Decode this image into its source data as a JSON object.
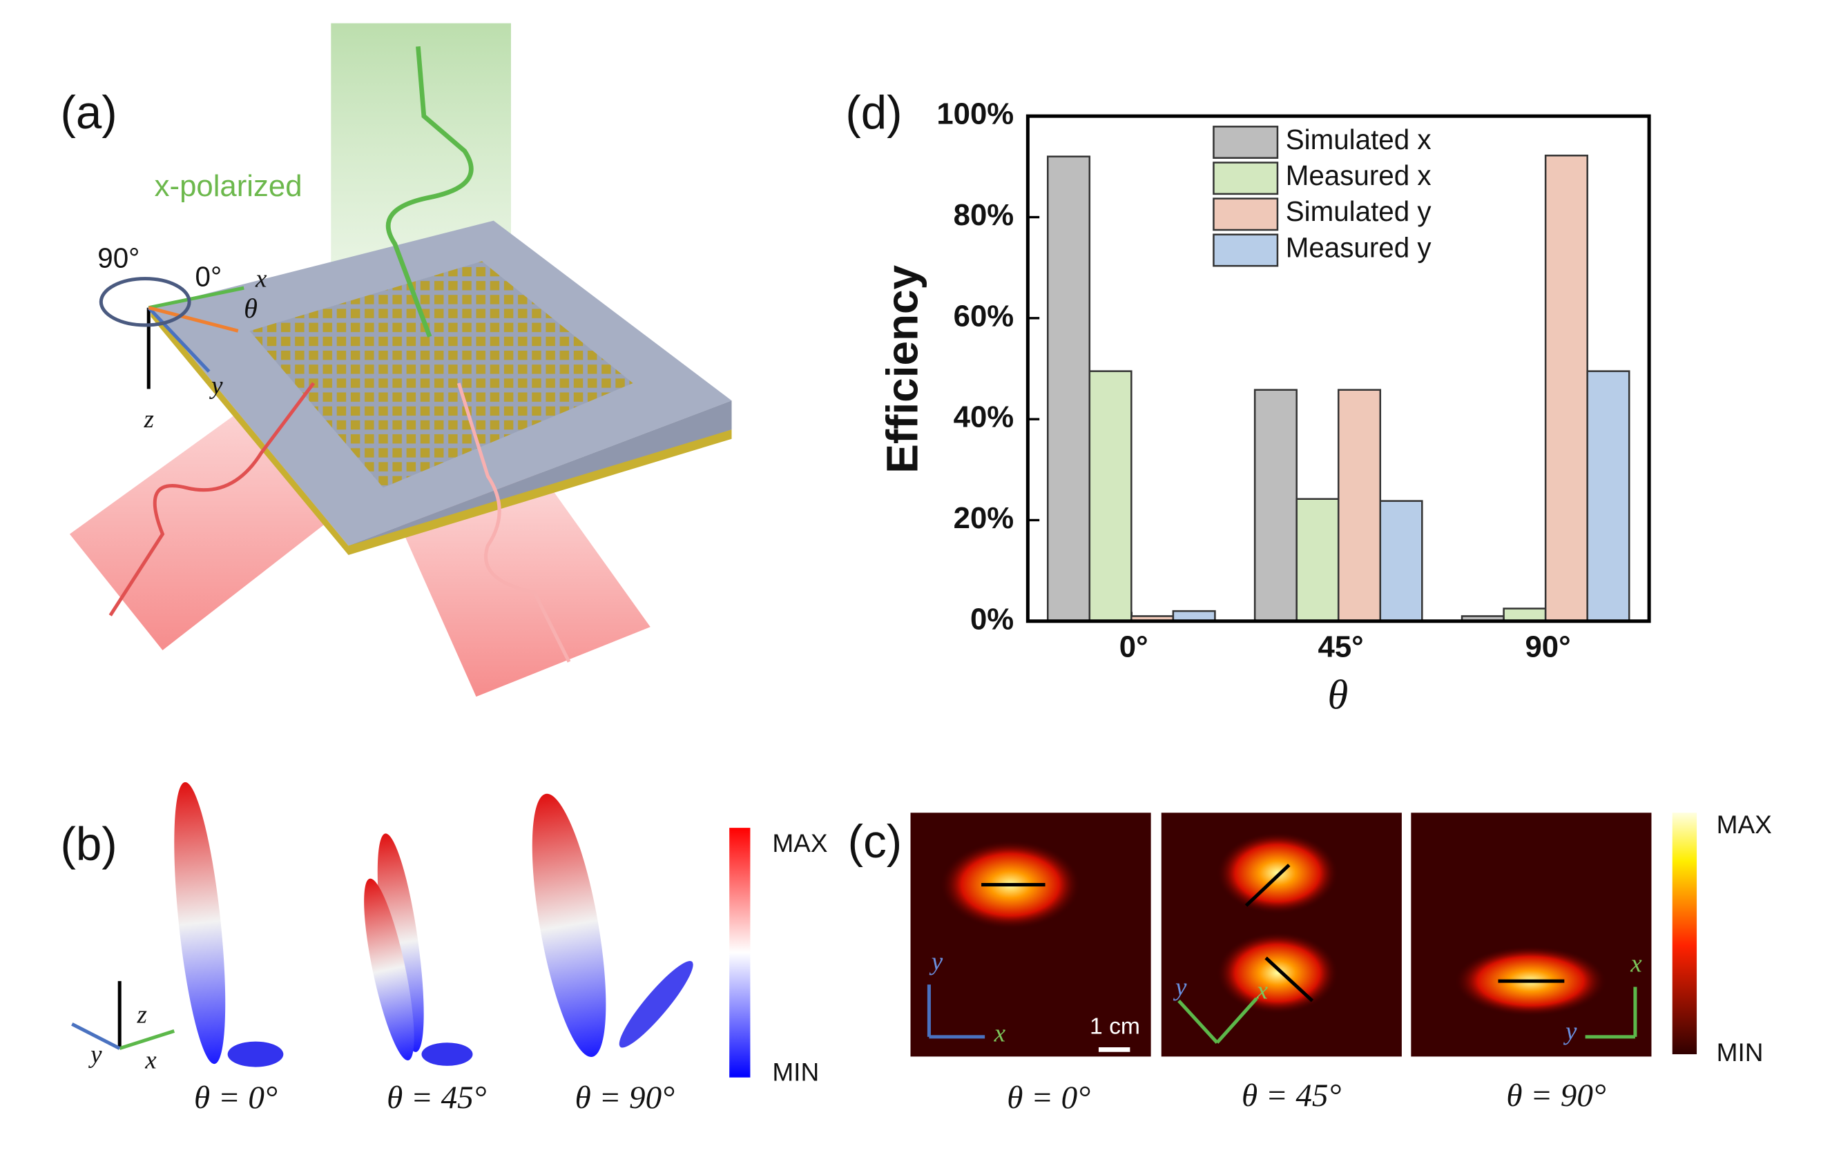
{
  "panel_a": {
    "label": "(a)",
    "beam_label": "x-polarized",
    "axes": {
      "angle_90": "90°",
      "angle_0": "0°",
      "x": "x",
      "theta": "θ",
      "y": "y",
      "z": "z"
    }
  },
  "panel_b": {
    "label": "(b)",
    "axes": {
      "z": "z",
      "y": "y",
      "x": "x"
    },
    "captions": [
      "θ = 0°",
      "θ = 45°",
      "θ = 90°"
    ],
    "colorbar": {
      "max": "MAX",
      "min": "MIN"
    }
  },
  "panel_c": {
    "label": "(c)",
    "scale_bar": "1 cm",
    "captions": [
      "θ = 0°",
      "θ = 45°",
      "θ = 90°"
    ],
    "axes_labels": [
      [
        "y",
        "x"
      ],
      [
        "y",
        "x"
      ],
      [
        "x",
        "y"
      ]
    ],
    "colorbar": {
      "max": "MAX",
      "min": "MIN"
    }
  },
  "chart_data": {
    "type": "bar",
    "panel_label": "(d)",
    "x_label": "θ",
    "y_label": "Efficiency",
    "categories": [
      "0°",
      "45°",
      "90°"
    ],
    "series": [
      {
        "name": "Simulated x",
        "color": "#bdbdbd",
        "values": [
          92,
          45.8,
          1
        ]
      },
      {
        "name": "Measured x",
        "color": "#d3e8bf",
        "values": [
          49.5,
          24.2,
          2.5
        ]
      },
      {
        "name": "Simulated y",
        "color": "#efc8b8",
        "values": [
          1,
          45.8,
          92.2
        ]
      },
      {
        "name": "Measured y",
        "color": "#b7cde8",
        "values": [
          2,
          23.8,
          49.5
        ]
      }
    ],
    "ylim": [
      0,
      100
    ],
    "yticks": [
      {
        "value": 0,
        "label": "0%"
      },
      {
        "value": 20,
        "label": "20%"
      },
      {
        "value": 40,
        "label": "40%"
      },
      {
        "value": 60,
        "label": "60%"
      },
      {
        "value": 80,
        "label": "80%"
      },
      {
        "value": 100,
        "label": "100%"
      }
    ]
  }
}
